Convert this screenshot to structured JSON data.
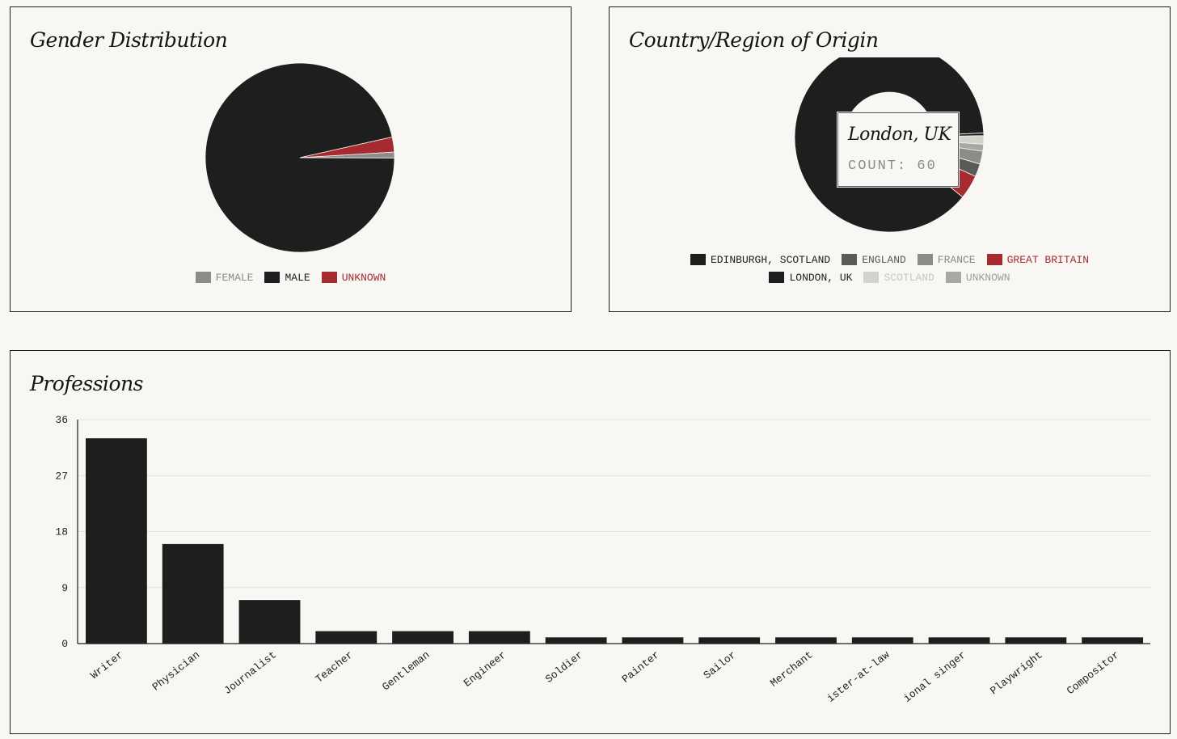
{
  "gender": {
    "title": "Gender Distribution",
    "chart_data": {
      "type": "pie",
      "title": "Gender Distribution",
      "slices": [
        {
          "label": "FEMALE",
          "value": 1,
          "color": "#8e8c88"
        },
        {
          "label": "MALE",
          "value": 95,
          "color": "#1e1e1e"
        },
        {
          "label": "UNKNOWN",
          "value": 2.5,
          "color": "#a62b31"
        }
      ],
      "legend": "bottom"
    },
    "legend": [
      {
        "label": "FEMALE",
        "color": "#8e8c88",
        "text_color": "#8a8a87"
      },
      {
        "label": "MALE",
        "color": "#1e1e1e",
        "text_color": "#1e1e1e"
      },
      {
        "label": "UNKNOWN",
        "color": "#a62b31",
        "text_color": "#a62b31"
      }
    ]
  },
  "country": {
    "title": "Country/Region of Origin",
    "tooltip": {
      "title": "London, UK",
      "count": "COUNT: 60"
    },
    "chart_data": {
      "type": "pie",
      "donut": true,
      "title": "Country/Region of Origin",
      "slices": [
        {
          "label": "LONDON, UK",
          "value": 60,
          "color": "#1e1e1e"
        },
        {
          "label": "SCOTLAND",
          "value": 1,
          "color": "#d4d2cc"
        },
        {
          "label": "UNKNOWN",
          "value": 0.8,
          "color": "#a9a7a2"
        },
        {
          "label": "FRANCE",
          "value": 1.5,
          "color": "#8e8c88"
        },
        {
          "label": "ENGLAND",
          "value": 1.5,
          "color": "#5a5a57"
        },
        {
          "label": "GREAT BRITAIN",
          "value": 2.8,
          "color": "#a62b31"
        },
        {
          "label": "EDINBURGH, SCOTLAND",
          "value": 0.3,
          "color": "#1e1e1e"
        }
      ],
      "legend": "bottom"
    },
    "legend_rows": [
      [
        {
          "label": "EDINBURGH, SCOTLAND",
          "color": "#1e1e1e",
          "text_color": "#1e1e1e"
        },
        {
          "label": "ENGLAND",
          "color": "#5a5a57",
          "text_color": "#5a5a57"
        },
        {
          "label": "FRANCE",
          "color": "#8e8c88",
          "text_color": "#8a8a87"
        },
        {
          "label": "GREAT BRITAIN",
          "color": "#a62b31",
          "text_color": "#a62b31"
        }
      ],
      [
        {
          "label": "LONDON, UK",
          "color": "#1e1e1e",
          "text_color": "#1e1e1e"
        },
        {
          "label": "SCOTLAND",
          "color": "#d4d2cc",
          "text_color": "#c8c6c0"
        },
        {
          "label": "UNKNOWN",
          "color": "#a9a7a2",
          "text_color": "#a09e99"
        }
      ]
    ]
  },
  "professions": {
    "title": "Professions",
    "chart_data": {
      "type": "bar",
      "title": "Professions",
      "categories": [
        "Writer",
        "Physician",
        "Journalist",
        "Teacher",
        "Gentleman",
        "Engineer",
        "Soldier",
        "Painter",
        "Sailor",
        "Merchant",
        "ister-at-law",
        "ional singer",
        "Playwright",
        "Compositor"
      ],
      "values": [
        33,
        16,
        7,
        2,
        2,
        2,
        1,
        1,
        1,
        1,
        1,
        1,
        1,
        1
      ],
      "yticks": [
        0,
        9,
        18,
        27,
        36
      ],
      "ylim": [
        0,
        36
      ],
      "grid": true,
      "color": "#1e1e1e"
    }
  }
}
